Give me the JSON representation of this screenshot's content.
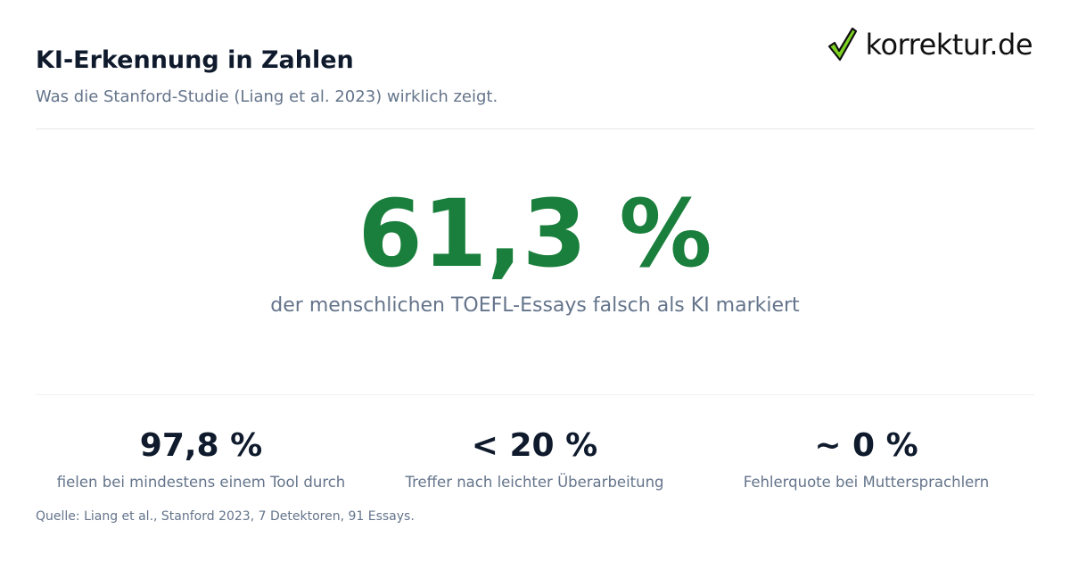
{
  "header": {
    "title": "KI-Erkennung in Zahlen",
    "subtitle": "Was die Stanford-Studie (Liang et al. 2023) wirklich zeigt.",
    "logo": "korrektur.de"
  },
  "hero": {
    "value": "61,3 %",
    "caption": "der menschlichen TOEFL-Essays falsch als KI markiert"
  },
  "stats": [
    {
      "value": "97,8 %",
      "label": "fielen bei mindestens einem Tool durch"
    },
    {
      "value": "< 20 %",
      "label": "Treffer nach leichter Überarbeitung"
    },
    {
      "value": "~ 0 %",
      "label": "Fehlerquote bei Muttersprachlern"
    }
  ],
  "source": "Quelle: Liang et al., Stanford 2023, 7 Detektoren, 91 Essays."
}
